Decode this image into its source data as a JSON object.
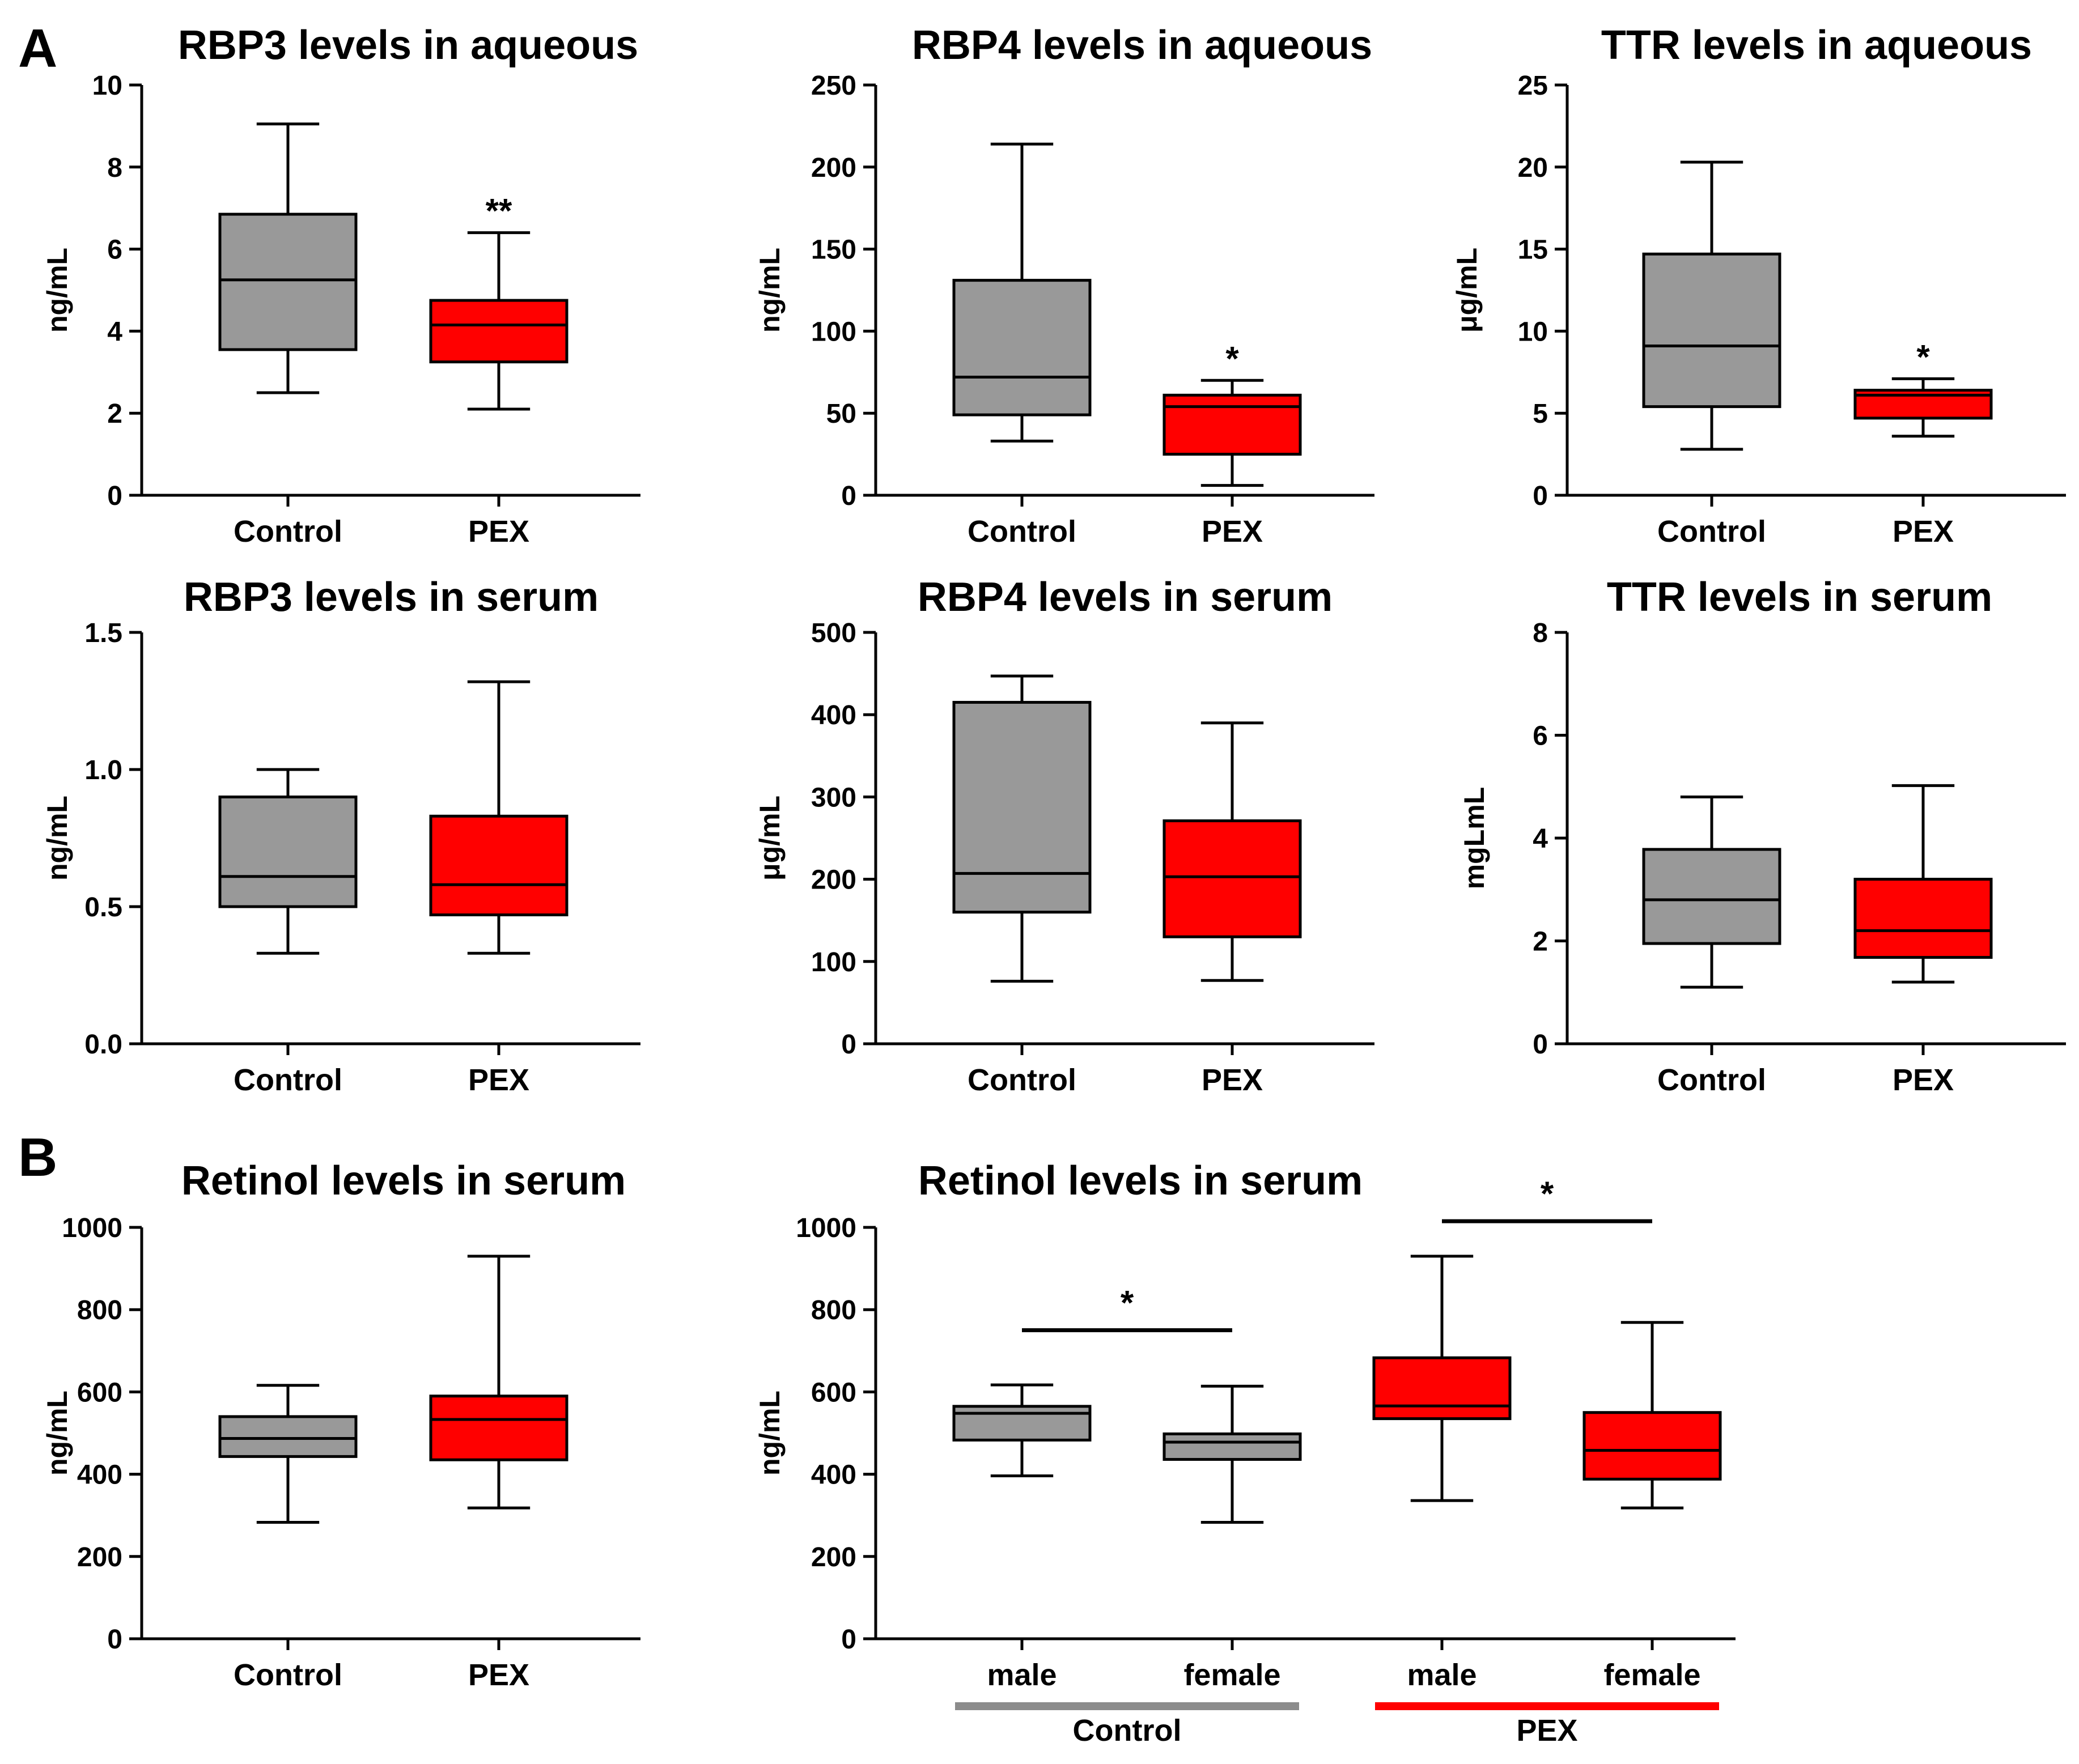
{
  "figure": {
    "panel_letters": [
      "A",
      "B"
    ]
  },
  "colors": {
    "control": "#999999",
    "pex": "#ff0000",
    "control_bar": "#8c8c8c",
    "pex_bar": "#ff0000",
    "outline": "#000000"
  },
  "chart_data": [
    {
      "type": "box",
      "title": "RBP3 levels in aqueous",
      "ylabel": "ng/mL",
      "ylim": [
        0,
        10
      ],
      "yticks": [
        0,
        2,
        4,
        6,
        8,
        10
      ],
      "ytick_labels": [
        "0",
        "2",
        "4",
        "6",
        "8",
        "10"
      ],
      "categories": [
        "Control",
        "PEX"
      ],
      "boxes": [
        {
          "name": "Control",
          "min": 2.5,
          "q1": 3.55,
          "median": 5.25,
          "q3": 6.85,
          "max": 9.05,
          "color": "control"
        },
        {
          "name": "PEX",
          "min": 2.1,
          "q1": 3.25,
          "median": 4.15,
          "q3": 4.75,
          "max": 6.4,
          "color": "pex",
          "annotation": "**"
        }
      ]
    },
    {
      "type": "box",
      "title": "RBP4 levels in aqueous",
      "ylabel": "ng/mL",
      "ylim": [
        0,
        250
      ],
      "yticks": [
        0,
        50,
        100,
        150,
        200,
        250
      ],
      "ytick_labels": [
        "0",
        "50",
        "100",
        "150",
        "200",
        "250"
      ],
      "categories": [
        "Control",
        "PEX"
      ],
      "boxes": [
        {
          "name": "Control",
          "min": 33,
          "q1": 49,
          "median": 72,
          "q3": 131,
          "max": 214,
          "color": "control"
        },
        {
          "name": "PEX",
          "min": 6,
          "q1": 25,
          "median": 54,
          "q3": 61,
          "max": 70,
          "color": "pex",
          "annotation": "*"
        }
      ]
    },
    {
      "type": "box",
      "title": "TTR levels in aqueous",
      "ylabel": "μg/mL",
      "ylim": [
        0,
        25
      ],
      "yticks": [
        0,
        5,
        10,
        15,
        20,
        25
      ],
      "ytick_labels": [
        "0",
        "5",
        "10",
        "15",
        "20",
        "25"
      ],
      "categories": [
        "Control",
        "PEX"
      ],
      "boxes": [
        {
          "name": "Control",
          "min": 2.8,
          "q1": 5.4,
          "median": 9.1,
          "q3": 14.7,
          "max": 20.3,
          "color": "control"
        },
        {
          "name": "PEX",
          "min": 3.6,
          "q1": 4.7,
          "median": 6.1,
          "q3": 6.4,
          "max": 7.1,
          "color": "pex",
          "annotation": "*"
        }
      ]
    },
    {
      "type": "box",
      "title": "RBP3 levels in serum",
      "ylabel": "ng/mL",
      "ylim": [
        0,
        1.5
      ],
      "yticks": [
        0,
        0.5,
        1.0,
        1.5
      ],
      "ytick_labels": [
        "0.0",
        "0.5",
        "1.0",
        "1.5"
      ],
      "categories": [
        "Control",
        "PEX"
      ],
      "boxes": [
        {
          "name": "Control",
          "min": 0.33,
          "q1": 0.5,
          "median": 0.61,
          "q3": 0.9,
          "max": 1.0,
          "color": "control"
        },
        {
          "name": "PEX",
          "min": 0.33,
          "q1": 0.47,
          "median": 0.58,
          "q3": 0.83,
          "max": 1.32,
          "color": "pex"
        }
      ]
    },
    {
      "type": "box",
      "title": "RBP4 levels in serum",
      "ylabel": "μg/mL",
      "ylim": [
        0,
        500
      ],
      "yticks": [
        0,
        100,
        200,
        300,
        400,
        500
      ],
      "ytick_labels": [
        "0",
        "100",
        "200",
        "300",
        "400",
        "500"
      ],
      "categories": [
        "Control",
        "PEX"
      ],
      "boxes": [
        {
          "name": "Control",
          "min": 76,
          "q1": 160,
          "median": 207,
          "q3": 415,
          "max": 447,
          "color": "control"
        },
        {
          "name": "PEX",
          "min": 77,
          "q1": 130,
          "median": 203,
          "q3": 271,
          "max": 390,
          "color": "pex"
        }
      ]
    },
    {
      "type": "box",
      "title": "TTR levels in serum",
      "ylabel": "mgLmL",
      "ylim": [
        0,
        8
      ],
      "yticks": [
        0,
        2,
        4,
        6,
        8
      ],
      "ytick_labels": [
        "0",
        "2",
        "4",
        "6",
        "8"
      ],
      "categories": [
        "Control",
        "PEX"
      ],
      "boxes": [
        {
          "name": "Control",
          "min": 1.1,
          "q1": 1.95,
          "median": 2.8,
          "q3": 3.78,
          "max": 4.8,
          "color": "control"
        },
        {
          "name": "PEX",
          "min": 1.2,
          "q1": 1.68,
          "median": 2.2,
          "q3": 3.2,
          "max": 5.02,
          "color": "pex"
        }
      ]
    },
    {
      "type": "box",
      "title": "Retinol levels in serum",
      "ylabel": "ng/mL",
      "ylim": [
        0,
        1000
      ],
      "yticks": [
        0,
        200,
        400,
        600,
        800,
        1000
      ],
      "ytick_labels": [
        "0",
        "200",
        "400",
        "600",
        "800",
        "1000"
      ],
      "categories": [
        "Control",
        "PEX"
      ],
      "boxes": [
        {
          "name": "Control",
          "min": 283,
          "q1": 443,
          "median": 487,
          "q3": 540,
          "max": 616,
          "color": "control"
        },
        {
          "name": "PEX",
          "min": 318,
          "q1": 435,
          "median": 533,
          "q3": 590,
          "max": 930,
          "color": "pex"
        }
      ]
    },
    {
      "type": "box",
      "title": "Retinol levels in serum",
      "ylabel": "ng/mL",
      "ylim": [
        0,
        1000
      ],
      "yticks": [
        0,
        200,
        400,
        600,
        800,
        1000
      ],
      "ytick_labels": [
        "0",
        "200",
        "400",
        "600",
        "800",
        "1000"
      ],
      "categories": [
        "male",
        "female",
        "male",
        "female"
      ],
      "groups": [
        {
          "label": "Control",
          "color": "control_bar",
          "members": [
            0,
            1
          ]
        },
        {
          "label": "PEX",
          "color": "pex_bar",
          "members": [
            2,
            3
          ]
        }
      ],
      "boxes": [
        {
          "name": "male",
          "min": 396,
          "q1": 483,
          "median": 548,
          "q3": 565,
          "max": 617,
          "color": "control"
        },
        {
          "name": "female",
          "min": 283,
          "q1": 436,
          "median": 478,
          "q3": 498,
          "max": 614,
          "color": "control"
        },
        {
          "name": "male",
          "min": 336,
          "q1": 535,
          "median": 566,
          "q3": 683,
          "max": 930,
          "color": "pex"
        },
        {
          "name": "female",
          "min": 318,
          "q1": 388,
          "median": 458,
          "q3": 550,
          "max": 769,
          "color": "pex"
        }
      ],
      "significance": [
        {
          "from": 0,
          "to": 1,
          "level": 750,
          "label": "*"
        },
        {
          "from": 2,
          "to": 3,
          "level": 1015,
          "label": "*"
        }
      ]
    }
  ]
}
